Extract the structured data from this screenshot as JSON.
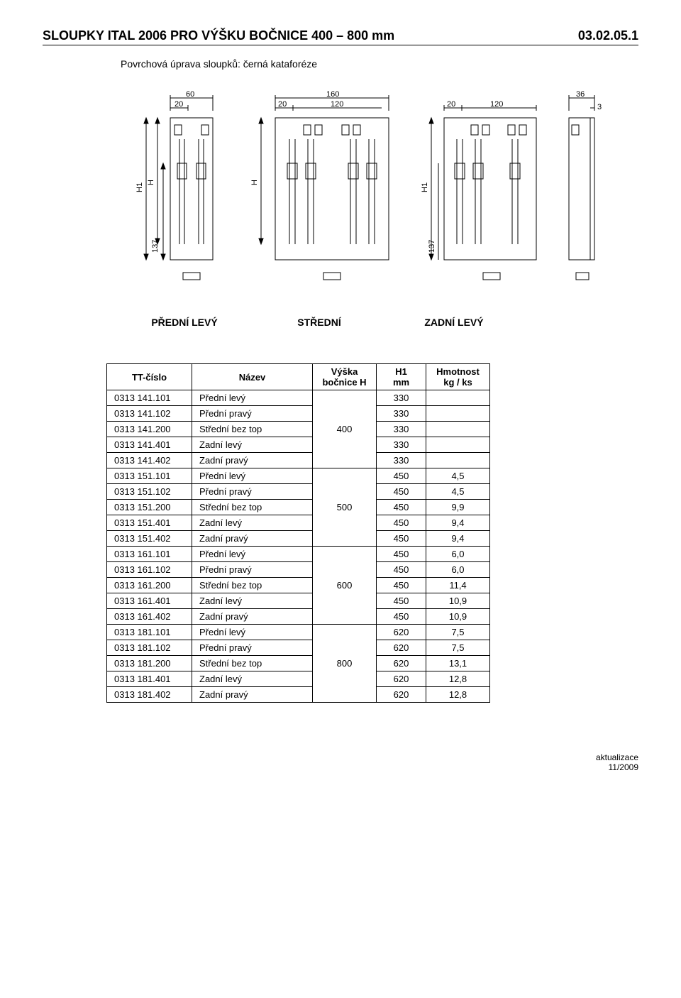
{
  "header": {
    "title": "SLOUPKY  ITAL 2006   PRO VÝŠKU BOČNICE  400 – 800 mm",
    "pagenum": "03.02.05.1"
  },
  "subtitle": "Povrchová úprava sloupků: černá kataforéze",
  "diagram_dims": {
    "d1_top1": "60",
    "d1_top2": "20",
    "d2_top1": "160",
    "d2_top2": "20",
    "d2_top3": "120",
    "d3_top1": "20",
    "d3_top2": "120",
    "d4_top1": "36",
    "d4_top2": "3",
    "v_H1": "H1",
    "v_H": "H",
    "v_137": "137"
  },
  "labels": {
    "predni": "PŘEDNÍ LEVÝ",
    "stredni": "STŘEDNÍ",
    "zadni": "ZADNÍ LEVÝ"
  },
  "table": {
    "headers": {
      "tt": "TT-číslo",
      "nazev": "Název",
      "vyska": "Výška\nbočnice H",
      "h1": "H1\nmm",
      "hmotnost": "Hmotnost\nkg / ks"
    },
    "groups": [
      {
        "vyska": "400",
        "rows": [
          {
            "tt": "0313 141.101",
            "nazev": "Přední levý",
            "h1": "330",
            "hm": ""
          },
          {
            "tt": "0313 141.102",
            "nazev": "Přední pravý",
            "h1": "330",
            "hm": ""
          },
          {
            "tt": "0313 141.200",
            "nazev": "Střední bez top",
            "h1": "330",
            "hm": ""
          },
          {
            "tt": "0313 141.401",
            "nazev": "Zadní levý",
            "h1": "330",
            "hm": ""
          },
          {
            "tt": "0313 141.402",
            "nazev": "Zadní pravý",
            "h1": "330",
            "hm": ""
          }
        ]
      },
      {
        "vyska": "500",
        "rows": [
          {
            "tt": "0313 151.101",
            "nazev": "Přední levý",
            "h1": "450",
            "hm": "4,5"
          },
          {
            "tt": "0313 151.102",
            "nazev": "Přední pravý",
            "h1": "450",
            "hm": "4,5"
          },
          {
            "tt": "0313 151.200",
            "nazev": "Střední bez top",
            "h1": "450",
            "hm": "9,9"
          },
          {
            "tt": "0313 151.401",
            "nazev": "Zadní levý",
            "h1": "450",
            "hm": "9,4"
          },
          {
            "tt": "0313 151.402",
            "nazev": "Zadní pravý",
            "h1": "450",
            "hm": "9,4"
          }
        ]
      },
      {
        "vyska": "600",
        "rows": [
          {
            "tt": "0313 161.101",
            "nazev": "Přední levý",
            "h1": "450",
            "hm": "6,0"
          },
          {
            "tt": "0313 161.102",
            "nazev": "Přední pravý",
            "h1": "450",
            "hm": "6,0"
          },
          {
            "tt": "0313 161.200",
            "nazev": "Střední bez top",
            "h1": "450",
            "hm": "11,4"
          },
          {
            "tt": "0313 161.401",
            "nazev": "Zadní levý",
            "h1": "450",
            "hm": "10,9"
          },
          {
            "tt": "0313 161.402",
            "nazev": "Zadní pravý",
            "h1": "450",
            "hm": "10,9"
          }
        ]
      },
      {
        "vyska": "800",
        "rows": [
          {
            "tt": "0313 181.101",
            "nazev": "Přední levý",
            "h1": "620",
            "hm": "7,5"
          },
          {
            "tt": "0313 181.102",
            "nazev": "Přední pravý",
            "h1": "620",
            "hm": "7,5"
          },
          {
            "tt": "0313 181.200",
            "nazev": "Střední bez top",
            "h1": "620",
            "hm": "13,1"
          },
          {
            "tt": "0313 181.401",
            "nazev": "Zadní levý",
            "h1": "620",
            "hm": "12,8"
          },
          {
            "tt": "0313 181.402",
            "nazev": "Zadní pravý",
            "h1": "620",
            "hm": "12,8"
          }
        ]
      }
    ]
  },
  "footer": {
    "line1": "aktualizace",
    "line2": "11/2009"
  },
  "colors": {
    "stroke": "#000000",
    "paper": "#ffffff"
  }
}
